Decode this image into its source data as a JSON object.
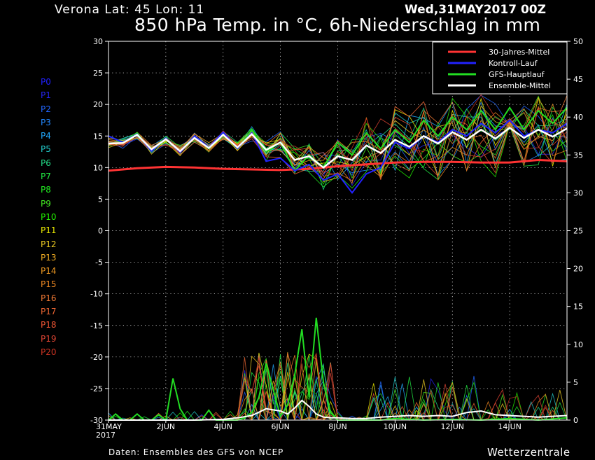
{
  "header": {
    "location": "Verona   Lat: 45 Lon: 11",
    "run": "Wed,31MAY2017 00Z",
    "title": "850 hPa Temp. in °C, 6h-Niederschlag in mm"
  },
  "footer": {
    "source": "Daten: Ensembles des GFS von NCEP",
    "brand": "Wetterzentrale"
  },
  "members": [
    {
      "label": "P0",
      "color": "#2020ff"
    },
    {
      "label": "P1",
      "color": "#2424f0"
    },
    {
      "label": "P2",
      "color": "#2266ff"
    },
    {
      "label": "P3",
      "color": "#2288ff"
    },
    {
      "label": "P4",
      "color": "#22aaff"
    },
    {
      "label": "P5",
      "color": "#22cccc"
    },
    {
      "label": "P6",
      "color": "#22dd88"
    },
    {
      "label": "P7",
      "color": "#22ee44"
    },
    {
      "label": "P8",
      "color": "#22ee22"
    },
    {
      "label": "P9",
      "color": "#44ee22"
    },
    {
      "label": "P10",
      "color": "#22ee00"
    },
    {
      "label": "P11",
      "color": "#eeee00"
    },
    {
      "label": "P12",
      "color": "#eecc22"
    },
    {
      "label": "P13",
      "color": "#eeaa22"
    },
    {
      "label": "P14",
      "color": "#ee9922"
    },
    {
      "label": "P15",
      "color": "#ee8822"
    },
    {
      "label": "P16",
      "color": "#ee7733"
    },
    {
      "label": "P17",
      "color": "#ee6633"
    },
    {
      "label": "P18",
      "color": "#ee5533"
    },
    {
      "label": "P19",
      "color": "#dd4433"
    },
    {
      "label": "P20",
      "color": "#cc3322"
    }
  ],
  "chart_data": {
    "type": "line",
    "x_unit": "days since 31MAY2017 00Z",
    "xlim": [
      0,
      16
    ],
    "x_ticks": [
      {
        "v": 0,
        "label": "31MAY"
      },
      {
        "v": 2,
        "label": "2JUN"
      },
      {
        "v": 4,
        "label": "4JUN"
      },
      {
        "v": 6,
        "label": "6JUN"
      },
      {
        "v": 8,
        "label": "8JUN"
      },
      {
        "v": 10,
        "label": "10JUN"
      },
      {
        "v": 12,
        "label": "12JUN"
      },
      {
        "v": 14,
        "label": "14JUN"
      }
    ],
    "x_sublabel": "2017",
    "ylim_left": [
      -30,
      30
    ],
    "y_left_ticks": [
      30,
      25,
      20,
      15,
      10,
      5,
      0,
      -5,
      -10,
      -15,
      -20,
      -25,
      -30
    ],
    "ylim_right": [
      0,
      50
    ],
    "y_right_ticks": [
      50,
      45,
      40,
      35,
      30,
      25,
      20,
      15,
      10,
      5,
      0
    ],
    "grid": true,
    "legend_position": "top-right",
    "legend": [
      {
        "name": "30-Jahres-Mittel",
        "color": "#ff3333"
      },
      {
        "name": "Kontroll-Lauf",
        "color": "#2222ff"
      },
      {
        "name": "GFS-Hauptlauf",
        "color": "#22dd22"
      },
      {
        "name": "Ensemble-Mittel",
        "color": "#ffffff"
      }
    ],
    "temp_series": [
      {
        "name": "30-Jahres-Mittel",
        "color": "#ff3333",
        "width": 3,
        "x": [
          0,
          1,
          2,
          3,
          4,
          5,
          6,
          7,
          8,
          9,
          10,
          11,
          12,
          13,
          14,
          15,
          16
        ],
        "y": [
          9.5,
          9.9,
          10.1,
          10.0,
          9.8,
          9.7,
          9.6,
          9.8,
          10.2,
          10.5,
          10.8,
          10.9,
          10.9,
          10.8,
          10.8,
          11.2,
          11.0
        ]
      },
      {
        "name": "GFS-Hauptlauf",
        "color": "#22dd22",
        "width": 2,
        "x": [
          0,
          0.5,
          1,
          1.5,
          2,
          2.5,
          3,
          3.5,
          4,
          4.5,
          5,
          5.5,
          6,
          6.5,
          7,
          7.5,
          8,
          8.5,
          9,
          9.5,
          10,
          10.5,
          11,
          11.5,
          12,
          12.5,
          13,
          13.5,
          14,
          14.5,
          15,
          15.5,
          16
        ],
        "y": [
          15,
          14,
          15.5,
          12.5,
          14.5,
          12.5,
          15,
          13,
          15.5,
          13,
          16,
          12.5,
          14,
          9.5,
          12,
          10,
          14,
          12,
          15.5,
          13,
          16,
          14,
          17.5,
          15,
          18,
          16,
          19,
          16,
          19.5,
          16,
          19,
          17,
          19.5
        ]
      },
      {
        "name": "Kontroll-Lauf",
        "color": "#2222ff",
        "width": 2,
        "x": [
          0,
          0.5,
          1,
          1.5,
          2,
          2.5,
          3,
          3.5,
          4,
          4.5,
          5,
          5.5,
          6,
          6.5,
          7,
          7.5,
          8,
          8.5,
          9,
          9.5,
          10,
          10.5,
          11,
          11.5,
          12,
          12.5,
          13,
          13.5,
          14,
          14.5,
          15,
          15.5,
          16
        ],
        "y": [
          15,
          14,
          15.3,
          12.6,
          14.6,
          12.4,
          15,
          13.2,
          15.6,
          13,
          15.5,
          11,
          11.5,
          9.5,
          10.5,
          8,
          9,
          6,
          9,
          10,
          14,
          13,
          15,
          14,
          16,
          15,
          17,
          15.5,
          17.5,
          15,
          16,
          15.5,
          17
        ]
      },
      {
        "name": "Ensemble-Mittel",
        "color": "#ffffff",
        "width": 2.5,
        "x": [
          0,
          0.5,
          1,
          1.5,
          2,
          2.5,
          3,
          3.5,
          4,
          4.5,
          5,
          5.5,
          6,
          6.5,
          7,
          7.5,
          8,
          8.5,
          9,
          9.5,
          10,
          10.5,
          11,
          11.5,
          12,
          12.5,
          13,
          13.5,
          14,
          14.5,
          15,
          15.5,
          16
        ],
        "y": [
          13.8,
          13.9,
          15.2,
          12.9,
          14.5,
          12.6,
          14.7,
          13.1,
          15.2,
          13.2,
          15.3,
          12.8,
          14.0,
          11.2,
          11.8,
          10.0,
          11.8,
          11.2,
          13.5,
          12.3,
          14.4,
          13.3,
          15.0,
          13.8,
          15.6,
          14.4,
          16.0,
          14.6,
          16.3,
          14.7,
          16.0,
          14.9,
          16.2
        ]
      }
    ],
    "precip_series": [
      {
        "name": "GFS-Hauptlauf",
        "color": "#22dd22",
        "width": 2,
        "x": [
          0,
          0.25,
          0.5,
          0.75,
          1,
          1.25,
          1.5,
          1.75,
          2,
          2.25,
          2.5,
          2.75,
          3,
          3.25,
          3.5,
          3.75,
          4,
          4.25,
          4.5,
          4.75,
          5,
          5.25,
          5.5,
          5.75,
          6,
          6.25,
          6.5,
          6.75,
          7,
          7.25,
          7.5,
          7.75,
          8,
          8.5,
          9,
          9.5,
          10,
          11,
          12,
          13,
          14,
          15,
          16
        ],
        "y": [
          0,
          0.8,
          0,
          0,
          0.8,
          0,
          0,
          0.7,
          0,
          5.5,
          1.5,
          0,
          0,
          0,
          1.3,
          0,
          0,
          0,
          0,
          0.3,
          1,
          3,
          7.5,
          4,
          0.5,
          2,
          6,
          12,
          3,
          13.5,
          5,
          1,
          0,
          0,
          0,
          0,
          0.2,
          0,
          0.1,
          0,
          0.2,
          0,
          0.3
        ]
      },
      {
        "name": "Ensemble-Mittel",
        "color": "#ffffff",
        "width": 2,
        "x": [
          0,
          1,
          2,
          3,
          4,
          4.5,
          5,
          5.5,
          6,
          6.25,
          6.5,
          6.75,
          7,
          7.25,
          7.5,
          7.75,
          8,
          8.5,
          9,
          9.5,
          10,
          10.5,
          11,
          11.5,
          12,
          12.5,
          13,
          13.5,
          14,
          14.5,
          15,
          15.5,
          16
        ],
        "y": [
          0,
          0,
          0,
          0,
          0.1,
          0.3,
          0.6,
          1.5,
          1.2,
          0.8,
          1.6,
          2.6,
          1.8,
          0.8,
          0.4,
          0.3,
          0.3,
          0.2,
          0.2,
          0.4,
          0.5,
          0.6,
          0.5,
          0.6,
          0.5,
          1.0,
          1.2,
          0.7,
          0.6,
          0.5,
          0.4,
          0.5,
          0.6
        ]
      }
    ]
  }
}
